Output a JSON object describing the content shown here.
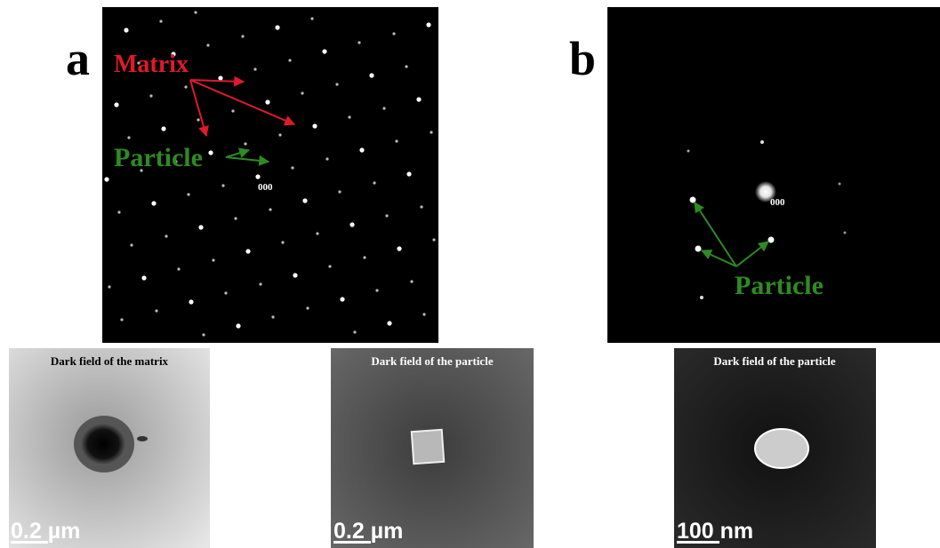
{
  "panel_a": {
    "label": "a",
    "matrix_label": "Matrix",
    "particle_label": "Particle",
    "origin_label": "000"
  },
  "panel_b": {
    "label": "b",
    "origin_label": "000",
    "particle_label": "Particle"
  },
  "dark_fields": [
    {
      "title": "Dark field of the matrix",
      "scale_bar": "0.2 µm"
    },
    {
      "title": "Dark field of the particle",
      "scale_bar": "0.2 µm"
    },
    {
      "title": "Dark field of the particle",
      "scale_bar": "100 nm"
    }
  ]
}
